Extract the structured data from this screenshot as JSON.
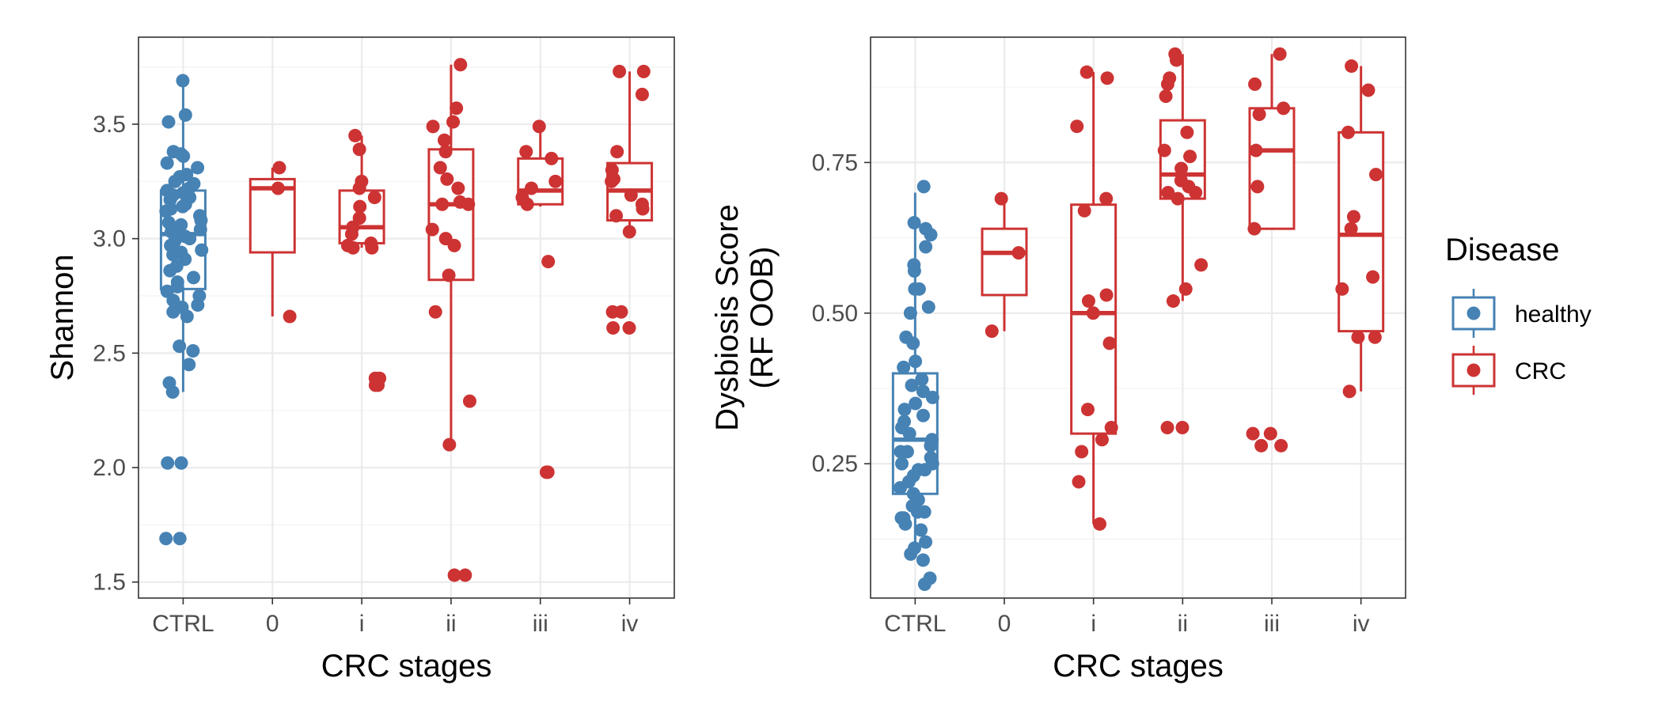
{
  "legend": {
    "title": "Disease",
    "items": [
      {
        "label": "healthy",
        "color": "#4682b4"
      },
      {
        "label": "CRC",
        "color": "#cd3333"
      }
    ]
  },
  "chart_data": [
    {
      "type": "box",
      "xlabel": "CRC stages",
      "ylabel": "Shannon",
      "categories": [
        "CTRL",
        "0",
        "i",
        "ii",
        "iii",
        "iv"
      ],
      "ylim": [
        1.43,
        3.88
      ],
      "yticks": [
        1.5,
        2.0,
        2.5,
        3.0,
        3.5
      ],
      "ytick_labels": [
        "1.5",
        "2.0",
        "2.5",
        "3.0",
        "3.5"
      ],
      "grid": true,
      "boxes": [
        {
          "category": "CTRL",
          "group": "healthy",
          "min": 2.33,
          "q1": 2.78,
          "median": 3.02,
          "q3": 3.21,
          "max": 3.69
        },
        {
          "category": "0",
          "group": "CRC",
          "min": 2.66,
          "q1": 2.94,
          "median": 3.22,
          "q3": 3.26,
          "max": 3.31
        },
        {
          "category": "i",
          "group": "CRC",
          "min": 2.96,
          "q1": 2.98,
          "median": 3.05,
          "q3": 3.21,
          "max": 3.45
        },
        {
          "category": "ii",
          "group": "CRC",
          "min": 2.1,
          "q1": 2.82,
          "median": 3.15,
          "q3": 3.39,
          "max": 3.76
        },
        {
          "category": "iii",
          "group": "CRC",
          "min": 3.14,
          "q1": 3.15,
          "median": 3.21,
          "q3": 3.35,
          "max": 3.49
        },
        {
          "category": "iv",
          "group": "CRC",
          "min": 3.03,
          "q1": 3.08,
          "median": 3.21,
          "q3": 3.33,
          "max": 3.73
        }
      ],
      "points": [
        {
          "category": "CTRL",
          "group": "healthy",
          "values": [
            3.69,
            3.54,
            3.51,
            3.38,
            3.37,
            3.36,
            3.33,
            3.31,
            3.28,
            3.27,
            3.25,
            3.24,
            3.22,
            3.21,
            3.2,
            3.19,
            3.18,
            3.17,
            3.15,
            3.14,
            3.13,
            3.12,
            3.1,
            3.08,
            3.07,
            3.06,
            3.04,
            3.03,
            3.02,
            3.01,
            3.0,
            2.99,
            2.97,
            2.95,
            2.94,
            2.93,
            2.91,
            2.88,
            2.86,
            2.83,
            2.81,
            2.79,
            2.77,
            2.75,
            2.73,
            2.71,
            2.7,
            2.68,
            2.66,
            2.53,
            2.51,
            2.45,
            2.37,
            2.33,
            2.02,
            2.02,
            1.69,
            1.69
          ]
        },
        {
          "category": "0",
          "group": "CRC",
          "values": [
            3.31,
            3.22,
            2.66
          ]
        },
        {
          "category": "i",
          "group": "CRC",
          "values": [
            3.45,
            3.39,
            3.25,
            3.22,
            3.18,
            3.14,
            3.09,
            3.05,
            3.02,
            2.98,
            2.97,
            2.96,
            2.96,
            2.39,
            2.39,
            2.36,
            2.36
          ]
        },
        {
          "category": "ii",
          "group": "CRC",
          "values": [
            3.76,
            3.57,
            3.51,
            3.49,
            3.43,
            3.38,
            3.31,
            3.26,
            3.22,
            3.16,
            3.15,
            3.15,
            3.04,
            3.0,
            2.97,
            2.84,
            2.68,
            2.29,
            2.1,
            1.53,
            1.53
          ]
        },
        {
          "category": "iii",
          "group": "CRC",
          "values": [
            3.49,
            3.38,
            3.35,
            3.25,
            3.22,
            3.18,
            3.15,
            2.9,
            1.98,
            1.98
          ]
        },
        {
          "category": "iv",
          "group": "CRC",
          "values": [
            3.73,
            3.73,
            3.63,
            3.38,
            3.3,
            3.26,
            3.25,
            3.19,
            3.15,
            3.13,
            3.1,
            3.03,
            2.68,
            2.68,
            2.61,
            2.61
          ]
        }
      ]
    },
    {
      "type": "box",
      "xlabel": "CRC stages",
      "ylabel": [
        "Dysbiosis Score",
        "(RF OOB)"
      ],
      "categories": [
        "CTRL",
        "0",
        "i",
        "ii",
        "iii",
        "iv"
      ],
      "ylim": [
        0.027,
        0.958
      ],
      "yticks": [
        0.25,
        0.5,
        0.75
      ],
      "ytick_labels": [
        "0.25",
        "0.50",
        "0.75"
      ],
      "grid": true,
      "boxes": [
        {
          "category": "CTRL",
          "group": "healthy",
          "min": 0.11,
          "q1": 0.2,
          "median": 0.29,
          "q3": 0.4,
          "max": 0.7
        },
        {
          "category": "0",
          "group": "CRC",
          "min": 0.47,
          "q1": 0.53,
          "median": 0.6,
          "q3": 0.64,
          "max": 0.69
        },
        {
          "category": "i",
          "group": "CRC",
          "min": 0.15,
          "q1": 0.3,
          "median": 0.5,
          "q3": 0.68,
          "max": 0.9
        },
        {
          "category": "ii",
          "group": "CRC",
          "min": 0.52,
          "q1": 0.69,
          "median": 0.73,
          "q3": 0.82,
          "max": 0.93
        },
        {
          "category": "iii",
          "group": "CRC",
          "min": 0.64,
          "q1": 0.64,
          "median": 0.77,
          "q3": 0.84,
          "max": 0.93
        },
        {
          "category": "iv",
          "group": "CRC",
          "min": 0.37,
          "q1": 0.47,
          "median": 0.63,
          "q3": 0.8,
          "max": 0.91
        }
      ],
      "points": [
        {
          "category": "CTRL",
          "group": "healthy",
          "values": [
            0.71,
            0.65,
            0.64,
            0.63,
            0.61,
            0.58,
            0.57,
            0.54,
            0.54,
            0.51,
            0.5,
            0.46,
            0.45,
            0.42,
            0.41,
            0.39,
            0.38,
            0.37,
            0.36,
            0.35,
            0.34,
            0.33,
            0.32,
            0.31,
            0.3,
            0.29,
            0.28,
            0.27,
            0.27,
            0.26,
            0.25,
            0.25,
            0.24,
            0.24,
            0.23,
            0.22,
            0.21,
            0.2,
            0.19,
            0.18,
            0.17,
            0.17,
            0.16,
            0.16,
            0.15,
            0.14,
            0.12,
            0.11,
            0.1,
            0.09,
            0.06,
            0.05
          ]
        },
        {
          "category": "0",
          "group": "CRC",
          "values": [
            0.69,
            0.6,
            0.47
          ]
        },
        {
          "category": "i",
          "group": "CRC",
          "values": [
            0.9,
            0.89,
            0.81,
            0.69,
            0.67,
            0.53,
            0.52,
            0.5,
            0.45,
            0.34,
            0.31,
            0.29,
            0.27,
            0.22,
            0.15
          ]
        },
        {
          "category": "ii",
          "group": "CRC",
          "values": [
            0.93,
            0.92,
            0.89,
            0.88,
            0.86,
            0.8,
            0.77,
            0.76,
            0.74,
            0.72,
            0.71,
            0.7,
            0.7,
            0.69,
            0.58,
            0.54,
            0.52,
            0.31,
            0.31
          ]
        },
        {
          "category": "iii",
          "group": "CRC",
          "values": [
            0.93,
            0.88,
            0.84,
            0.83,
            0.77,
            0.71,
            0.64,
            0.3,
            0.3,
            0.28,
            0.28
          ]
        },
        {
          "category": "iv",
          "group": "CRC",
          "values": [
            0.91,
            0.87,
            0.8,
            0.73,
            0.66,
            0.64,
            0.56,
            0.54,
            0.46,
            0.46,
            0.37
          ]
        }
      ]
    }
  ]
}
